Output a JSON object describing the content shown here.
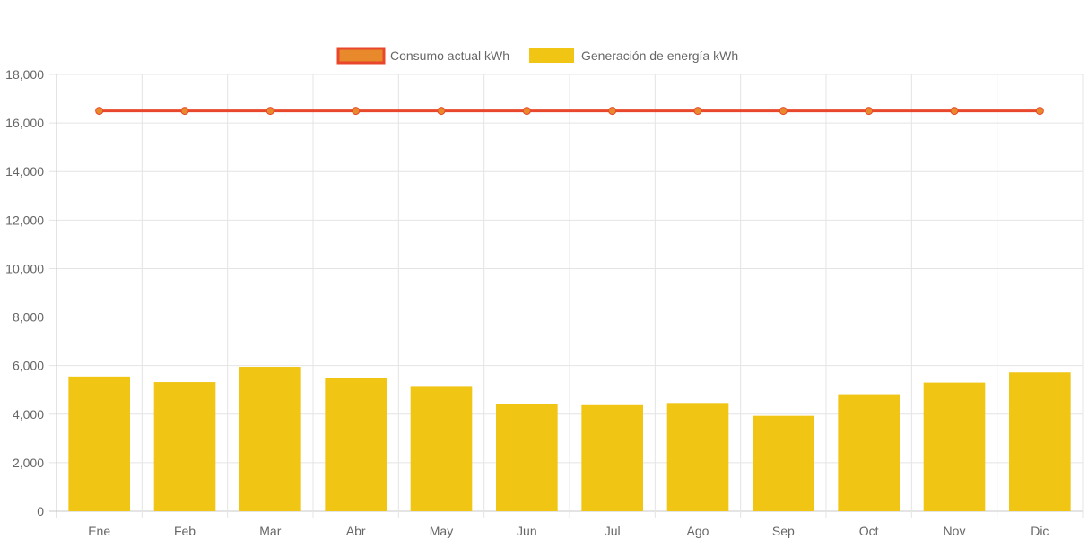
{
  "chart_data": {
    "type": "bar",
    "categories": [
      "Ene",
      "Feb",
      "Mar",
      "Abr",
      "May",
      "Jun",
      "Jul",
      "Ago",
      "Sep",
      "Oct",
      "Nov",
      "Dic"
    ],
    "series": [
      {
        "name": "Consumo actual kWh",
        "type": "line",
        "color": "#e8472b",
        "point_color": "#e88a2b",
        "values": [
          16500,
          16500,
          16500,
          16500,
          16500,
          16500,
          16500,
          16500,
          16500,
          16500,
          16500,
          16500
        ]
      },
      {
        "name": "Generación de energía kWh",
        "type": "bar",
        "color": "#f0c514",
        "values": [
          5550,
          5320,
          5950,
          5490,
          5160,
          4410,
          4370,
          4460,
          3930,
          4820,
          5300,
          5720
        ]
      }
    ],
    "ylim": [
      0,
      18000
    ],
    "yticks": [
      "0",
      "2,000",
      "4,000",
      "6,000",
      "8,000",
      "10,000",
      "12,000",
      "14,000",
      "16,000",
      "18,000"
    ],
    "grid": true,
    "legend_position": "top-center",
    "title": "",
    "xlabel": "",
    "ylabel": ""
  }
}
